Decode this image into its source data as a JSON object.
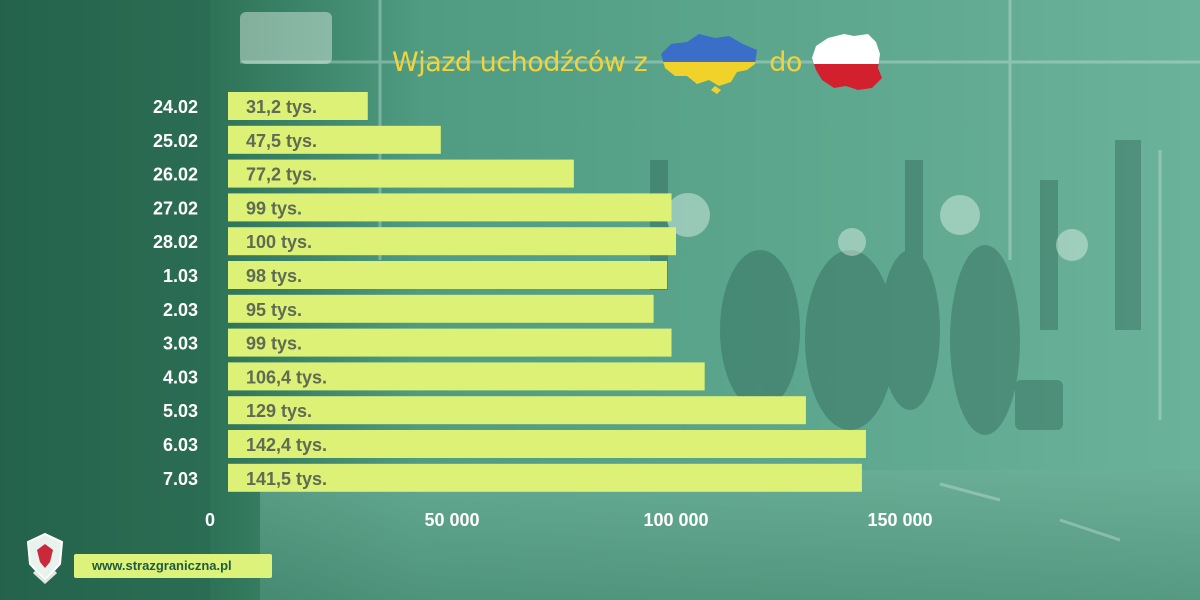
{
  "chart_data": {
    "type": "bar",
    "orientation": "horizontal",
    "title_parts": [
      "Wjazd uchodźców z",
      "do"
    ],
    "categories": [
      "24.02",
      "25.02",
      "26.02",
      "27.02",
      "28.02",
      "1.03",
      "2.03",
      "3.03",
      "4.03",
      "5.03",
      "6.03",
      "7.03"
    ],
    "values": [
      31200,
      47500,
      77200,
      99000,
      100000,
      98000,
      95000,
      99000,
      106400,
      129000,
      142400,
      141500
    ],
    "data_labels": [
      "31,2 tys.",
      "47,5 tys.",
      "77,2 tys.",
      "99 tys.",
      "100 tys.",
      "98 tys.",
      "95 tys.",
      "99 tys.",
      "106,4 tys.",
      "129 tys.",
      "142,4 tys.",
      "141,5 tys."
    ],
    "x_ticks": [
      0,
      50000,
      100000,
      150000
    ],
    "x_tick_labels": [
      "0",
      "50 000",
      "100 000",
      "150 000"
    ],
    "xlim": [
      0,
      150000
    ],
    "grid": false,
    "colors": {
      "bar": "#dcf176",
      "bar_label": "#5f6b55",
      "category_label": "#ffffff",
      "tick_label": "#ffffff",
      "title": "#f4d33a"
    }
  },
  "footer": {
    "url": "www.strazgraniczna.pl",
    "logo_icon": "border-guard-emblem-icon"
  },
  "flags": {
    "from": "ukraine-map-flag-icon",
    "to": "poland-map-flag-icon"
  },
  "theme": {
    "background_overlay": "#5aa88f",
    "left_panel": "#2f6e57"
  }
}
